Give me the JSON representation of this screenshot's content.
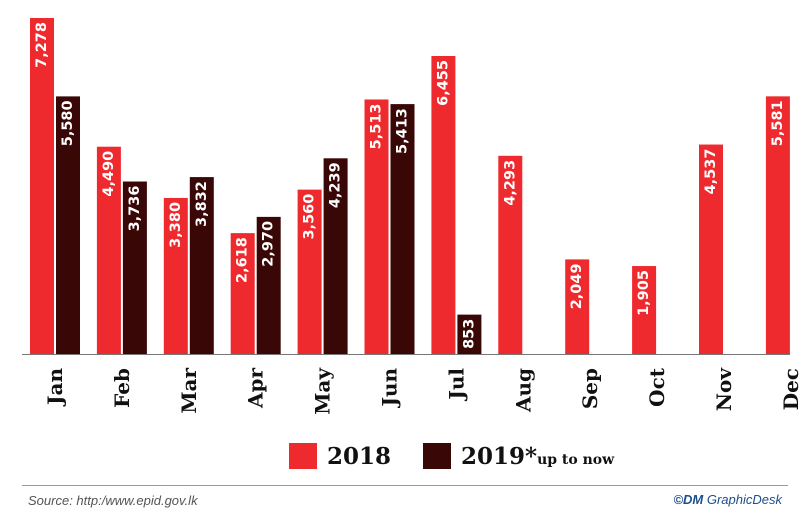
{
  "chart_data": {
    "type": "bar",
    "categories": [
      "Jan",
      "Feb",
      "Mar",
      "Apr",
      "May",
      "Jun",
      "Jul",
      "Aug",
      "Sep",
      "Oct",
      "Nov",
      "Dec"
    ],
    "series": [
      {
        "name": "2018",
        "color": "#ee2a2e",
        "values": [
          7278,
          4490,
          3380,
          2618,
          3560,
          5513,
          6455,
          4293,
          2049,
          1905,
          4537,
          5581
        ],
        "labels": [
          "7,278",
          "4,490",
          "3,380",
          "2,618",
          "3,560",
          "5,513",
          "6,455",
          "4,293",
          "2,049",
          "1,905",
          "4,537",
          "5,581"
        ]
      },
      {
        "name": "2019*",
        "color": "#3a0707",
        "values": [
          5580,
          3736,
          3832,
          2970,
          4239,
          5413,
          853,
          null,
          null,
          null,
          null,
          null
        ],
        "labels": [
          "5,580",
          "3,736",
          "3,832",
          "2,970",
          "4,239",
          "5,413",
          "853",
          "",
          "",
          "",
          "",
          ""
        ]
      }
    ],
    "ylim": [
      0,
      7278
    ],
    "grid": false,
    "legend_position": "bottom"
  },
  "legend": {
    "label_2018": "2018",
    "label_2019": "2019*",
    "note_2019": "up to now"
  },
  "footer": {
    "source": "Source: http:/www.epid.gov.lk",
    "credit_mark": "©DM",
    "credit_text": " GraphicDesk"
  }
}
